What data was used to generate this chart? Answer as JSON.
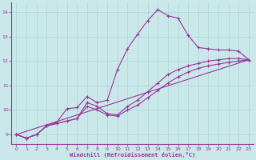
{
  "xlabel": "Windchill (Refroidissement éolien,°C)",
  "xlim": [
    -0.5,
    23.5
  ],
  "ylim": [
    8.6,
    14.4
  ],
  "xticks": [
    0,
    1,
    2,
    3,
    4,
    5,
    6,
    7,
    8,
    9,
    10,
    11,
    12,
    13,
    14,
    15,
    16,
    17,
    18,
    19,
    20,
    21,
    22,
    23
  ],
  "yticks": [
    9,
    10,
    11,
    12,
    13,
    14
  ],
  "bg_color": "#cae8ea",
  "line_color": "#993399",
  "grid_color": "#aad4d4",
  "line1_x": [
    0,
    1,
    2,
    3,
    4,
    5,
    6,
    7,
    8,
    9,
    10,
    11,
    12,
    13,
    14,
    15,
    16,
    17,
    18,
    19,
    20,
    21,
    22,
    23
  ],
  "line1_y": [
    9.0,
    8.85,
    9.0,
    9.35,
    9.5,
    10.05,
    10.1,
    10.55,
    10.3,
    10.4,
    11.65,
    12.5,
    13.1,
    13.65,
    14.1,
    13.85,
    13.75,
    13.05,
    12.55,
    12.5,
    12.45,
    12.45,
    12.4,
    12.05
  ],
  "line2_x": [
    0,
    1,
    2,
    3,
    4,
    5,
    6,
    7,
    8,
    9,
    10,
    11,
    12,
    13,
    14,
    15,
    16,
    17,
    18,
    19,
    20,
    21,
    22,
    23
  ],
  "line2_y": [
    9.0,
    8.85,
    9.0,
    9.35,
    9.45,
    9.55,
    9.65,
    10.3,
    10.15,
    9.85,
    9.8,
    10.15,
    10.4,
    10.75,
    11.1,
    11.45,
    11.65,
    11.8,
    11.9,
    12.0,
    12.05,
    12.1,
    12.1,
    12.05
  ],
  "line3_x": [
    0,
    23
  ],
  "line3_y": [
    9.0,
    12.05
  ],
  "line4_x": [
    0,
    1,
    2,
    3,
    4,
    5,
    6,
    7,
    8,
    9,
    10,
    11,
    12,
    13,
    14,
    15,
    16,
    17,
    18,
    19,
    20,
    21,
    22,
    23
  ],
  "line4_y": [
    9.0,
    8.85,
    9.0,
    9.35,
    9.45,
    9.55,
    9.65,
    10.15,
    10.0,
    9.8,
    9.75,
    10.0,
    10.2,
    10.5,
    10.8,
    11.1,
    11.35,
    11.55,
    11.7,
    11.8,
    11.88,
    11.94,
    12.0,
    12.05
  ]
}
